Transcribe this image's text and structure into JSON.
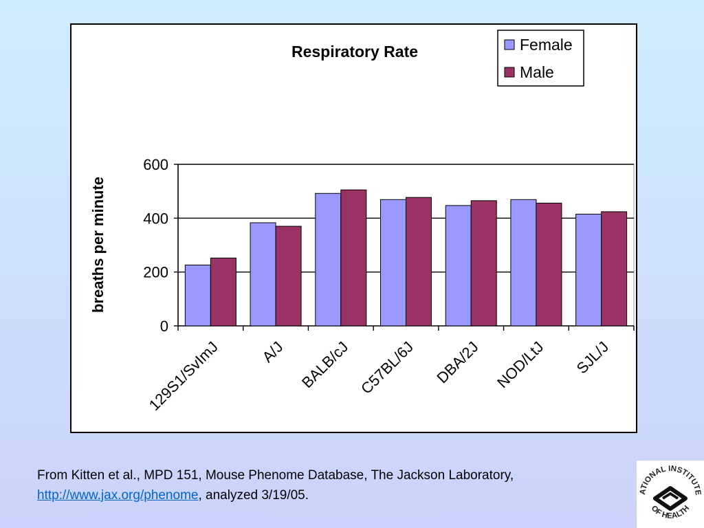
{
  "chart_data": {
    "type": "bar",
    "title": "Respiratory Rate",
    "xlabel": "",
    "ylabel": "breaths per minute",
    "categories": [
      "129S1/SvImJ",
      "A/J",
      "BALB/cJ",
      "C57BL/6J",
      "DBA/2J",
      "NOD/LtJ",
      "SJL/J"
    ],
    "series": [
      {
        "name": "Female",
        "color": "#9999ff",
        "values": [
          226,
          383,
          492,
          469,
          447,
          469,
          415
        ]
      },
      {
        "name": "Male",
        "color": "#993366",
        "values": [
          252,
          370,
          505,
          477,
          465,
          456,
          424
        ]
      }
    ],
    "ylim": [
      0,
      600
    ],
    "yticks": [
      0,
      200,
      400,
      600
    ],
    "grid": true,
    "legend_position": "top-right"
  },
  "caption": {
    "text_before": "From Kitten et al., MPD 151, Mouse Phenome Database, The Jackson Laboratory, ",
    "link_text": "http://www.jax.org/phenome",
    "text_after": ", analyzed 3/19/05."
  },
  "logo": {
    "top_text": "NATIONAL INSTITUTES",
    "bottom_text": "OF HEALTH"
  }
}
